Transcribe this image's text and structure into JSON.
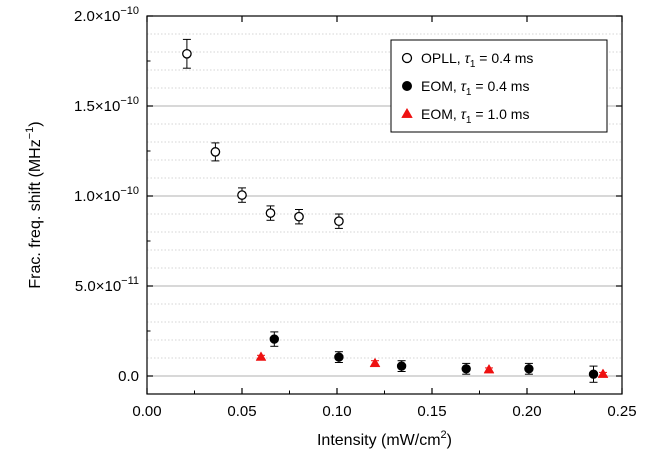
{
  "chart_data": {
    "type": "scatter",
    "title": "",
    "xlabel": {
      "main": "Intensity (mW/cm",
      "sup": "2",
      "tail": ")"
    },
    "ylabel": {
      "main": "Frac. freq. shift (MHz",
      "sup": "−1",
      "tail": ")"
    },
    "xlim": [
      0,
      0.25
    ],
    "ylim": [
      -1e-11,
      2e-10
    ],
    "x_ticks": [
      {
        "value": 0.0,
        "label": "0.00"
      },
      {
        "value": 0.05,
        "label": "0.05"
      },
      {
        "value": 0.1,
        "label": "0.10"
      },
      {
        "value": 0.15,
        "label": "0.15"
      },
      {
        "value": 0.2,
        "label": "0.20"
      },
      {
        "value": 0.25,
        "label": "0.25"
      }
    ],
    "y_ticks": [
      {
        "value": 0,
        "label": "0.0"
      },
      {
        "value": 5e-11,
        "label": "5.0×10",
        "exp": "−11"
      },
      {
        "value": 1e-10,
        "label": "1.0×10",
        "exp": "−10"
      },
      {
        "value": 1.5e-10,
        "label": "1.5×10",
        "exp": "−10"
      },
      {
        "value": 2e-10,
        "label": "2.0×10",
        "exp": "−10"
      }
    ],
    "grid": "horizontal",
    "major_grid_step": 5e-11,
    "minor_grid_step": 1e-11,
    "legend_position": "top-right",
    "series": [
      {
        "name": "OPLL,",
        "tau_sym": "τ",
        "tau_sub": "1",
        "tau_val": " = 0.4 ms",
        "marker": "open-circle",
        "color": "#000000",
        "points": [
          {
            "x": 0.021,
            "y": 1.79e-10,
            "err": 8e-12
          },
          {
            "x": 0.036,
            "y": 1.245e-10,
            "err": 5e-12
          },
          {
            "x": 0.05,
            "y": 1.005e-10,
            "err": 4e-12
          },
          {
            "x": 0.065,
            "y": 9.05e-11,
            "err": 4e-12
          },
          {
            "x": 0.08,
            "y": 8.85e-11,
            "err": 4e-12
          },
          {
            "x": 0.101,
            "y": 8.6e-11,
            "err": 4e-12
          }
        ]
      },
      {
        "name": "EOM,",
        "tau_sym": "τ",
        "tau_sub": "1",
        "tau_val": " = 0.4 ms",
        "marker": "filled-circle",
        "color": "#000000",
        "points": [
          {
            "x": 0.067,
            "y": 2.05e-11,
            "err": 4e-12
          },
          {
            "x": 0.101,
            "y": 1.05e-11,
            "err": 3e-12
          },
          {
            "x": 0.134,
            "y": 5.5e-12,
            "err": 3e-12
          },
          {
            "x": 0.168,
            "y": 4e-12,
            "err": 3e-12
          },
          {
            "x": 0.201,
            "y": 4e-12,
            "err": 3e-12
          },
          {
            "x": 0.235,
            "y": 1e-12,
            "err": 4.5e-12
          }
        ]
      },
      {
        "name": "EOM,",
        "tau_sym": "τ",
        "tau_sub": "1",
        "tau_val": " = 1.0 ms",
        "marker": "filled-triangle",
        "color": "#ee1111",
        "points": [
          {
            "x": 0.06,
            "y": 1.05e-11,
            "err": 1e-12
          },
          {
            "x": 0.12,
            "y": 7e-12,
            "err": 1.5e-12
          },
          {
            "x": 0.18,
            "y": 3.5e-12,
            "err": 1e-12
          },
          {
            "x": 0.24,
            "y": 1e-12,
            "err": 1e-12
          }
        ]
      }
    ]
  }
}
